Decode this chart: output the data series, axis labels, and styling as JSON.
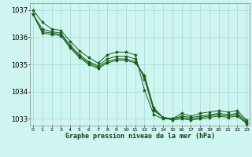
{
  "xlabel": "Graphe pression niveau de la mer (hPa)",
  "background_color": "#cef5f0",
  "grid_color": "#aadddd",
  "line_color": "#1a5c1a",
  "x": [
    0,
    1,
    2,
    3,
    4,
    5,
    6,
    7,
    8,
    9,
    10,
    11,
    12,
    13,
    14,
    15,
    16,
    17,
    18,
    19,
    20,
    21,
    22,
    23
  ],
  "line1": [
    1037.0,
    1036.55,
    1036.3,
    1036.25,
    1035.85,
    1035.5,
    1035.25,
    1035.05,
    1035.35,
    1035.45,
    1035.45,
    1035.35,
    1034.05,
    1033.15,
    1033.0,
    1033.0,
    1033.2,
    1033.1,
    1033.2,
    1033.25,
    1033.3,
    1033.25,
    1033.3,
    1032.95
  ],
  "line2": [
    1036.85,
    1036.3,
    1036.2,
    1036.15,
    1035.7,
    1035.35,
    1035.1,
    1034.95,
    1035.2,
    1035.3,
    1035.3,
    1035.2,
    1034.45,
    1033.3,
    1033.05,
    1033.0,
    1033.1,
    1033.05,
    1033.1,
    1033.15,
    1033.2,
    1033.15,
    1033.2,
    1032.9
  ],
  "line3": [
    1036.85,
    1036.2,
    1036.15,
    1036.1,
    1035.65,
    1035.3,
    1035.05,
    1034.9,
    1035.1,
    1035.2,
    1035.2,
    1035.1,
    1034.55,
    1033.35,
    1033.05,
    1033.0,
    1033.05,
    1033.0,
    1033.05,
    1033.1,
    1033.15,
    1033.1,
    1033.15,
    1032.85
  ],
  "line4": [
    1036.85,
    1036.15,
    1036.1,
    1036.05,
    1035.6,
    1035.25,
    1035.0,
    1034.85,
    1035.05,
    1035.15,
    1035.15,
    1035.05,
    1034.6,
    1033.4,
    1033.05,
    1032.95,
    1033.0,
    1032.95,
    1033.0,
    1033.05,
    1033.1,
    1033.05,
    1033.1,
    1032.82
  ],
  "ylim": [
    1032.75,
    1037.25
  ],
  "yticks": [
    1033,
    1034,
    1035,
    1036,
    1037
  ],
  "xticks": [
    0,
    1,
    2,
    3,
    4,
    5,
    6,
    7,
    8,
    9,
    10,
    11,
    12,
    13,
    14,
    15,
    16,
    17,
    18,
    19,
    20,
    21,
    22,
    23
  ]
}
